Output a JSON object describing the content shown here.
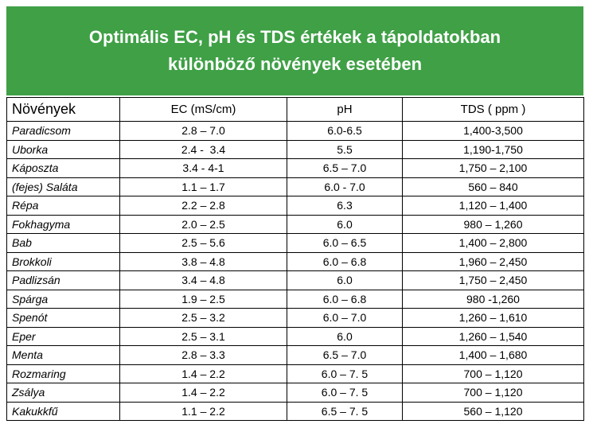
{
  "header": {
    "title_lines": [
      "Optimális EC, pH és TDS értékek a tápoldatokban",
      "különböző növények esetében"
    ]
  },
  "table": {
    "columns": [
      "Növények",
      "EC (mS/cm)",
      "pH",
      "TDS ( ppm )"
    ],
    "rows": [
      [
        "Paradicsom",
        "2.8 – 7.0",
        "6.0-6.5",
        "1,400-3,500"
      ],
      [
        "Uborka",
        "2.4 -  3.4",
        "5.5",
        "1,190-1,750"
      ],
      [
        "Káposzta",
        "3.4 - 4-1",
        "6.5 – 7.0",
        "1,750 – 2,100"
      ],
      [
        "(fejes) Saláta",
        "1.1 – 1.7",
        "6.0 - 7.0",
        "560 – 840"
      ],
      [
        "Répa",
        "2.2 – 2.8",
        "6.3",
        "1,120 – 1,400"
      ],
      [
        "Fokhagyma",
        "2.0 – 2.5",
        "6.0",
        "980 – 1,260"
      ],
      [
        "Bab",
        "2.5 – 5.6",
        "6.0 – 6.5",
        "1,400 – 2,800"
      ],
      [
        "Brokkoli",
        "3.8 – 4.8",
        "6.0 – 6.8",
        "1,960 – 2,450"
      ],
      [
        "Padlizsán",
        "3.4 – 4.8",
        "6.0",
        "1,750 – 2,450"
      ],
      [
        "Spárga",
        "1.9 – 2.5",
        "6.0 – 6.8",
        "980 -1,260"
      ],
      [
        "Spenót",
        "2.5 – 3.2",
        "6.0 – 7.0",
        "1,260 – 1,610"
      ],
      [
        "Eper",
        "2.5 – 3.1",
        "6.0",
        "1,260 – 1,540"
      ],
      [
        "Menta",
        "2.8 – 3.3",
        "6.5 – 7.0",
        "1,400 – 1,680"
      ],
      [
        "Rozmaring",
        "1.4 – 2.2",
        "6.0 – 7. 5",
        "700 – 1,120"
      ],
      [
        "Zsálya",
        "1.4 – 2.2",
        "6.0 – 7. 5",
        "700 – 1,120"
      ],
      [
        "Kakukkfű",
        "1.1 – 2.2",
        "6.5 – 7. 5",
        "560 – 1,120"
      ]
    ]
  }
}
